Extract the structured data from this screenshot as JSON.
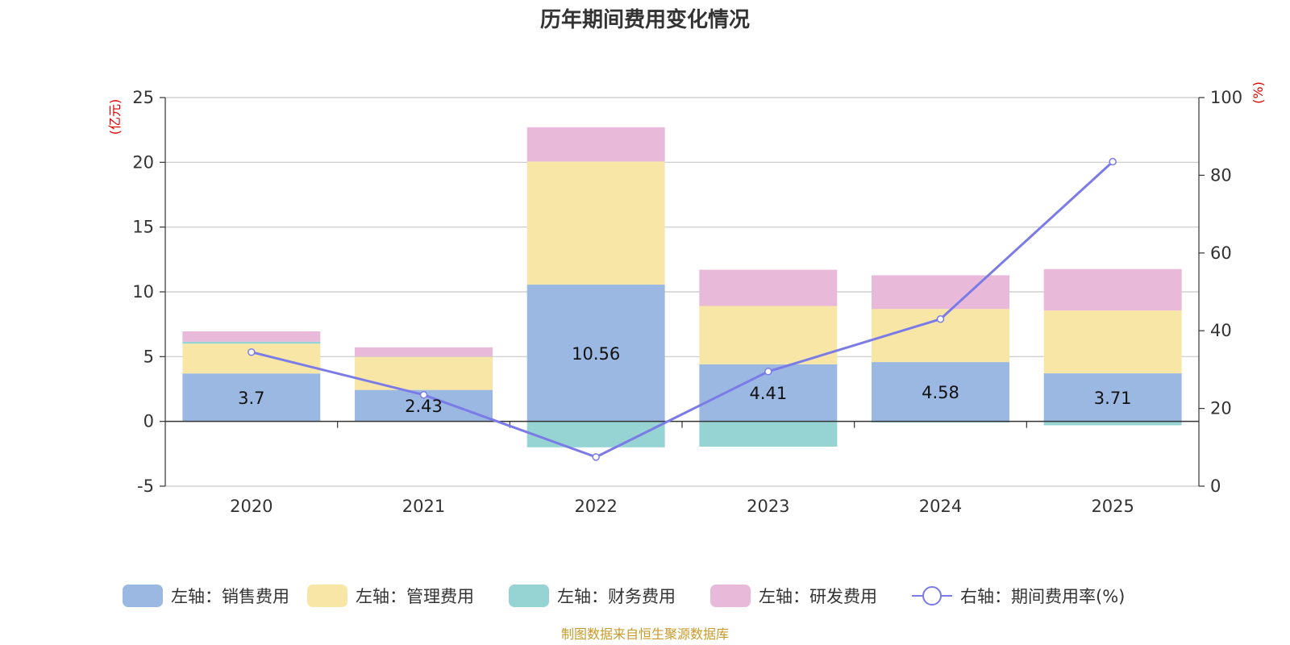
{
  "chart_data": {
    "type": "bar",
    "title": "历年期间费用变化情况",
    "categories": [
      "2020",
      "2021",
      "2022",
      "2023",
      "2024",
      "2025"
    ],
    "left_axis": {
      "unit": "(亿元)",
      "ylim": [
        -5,
        25
      ],
      "ticks": [
        -5,
        0,
        5,
        10,
        15,
        20,
        25
      ]
    },
    "right_axis": {
      "unit": "(%)",
      "ylim": [
        0,
        100
      ],
      "ticks": [
        0,
        20,
        40,
        60,
        80,
        100
      ]
    },
    "series": [
      {
        "name": "左轴：销售费用",
        "type": "bar",
        "axis": "left",
        "color": "#9bb8e2",
        "values": [
          3.7,
          2.43,
          10.56,
          4.41,
          4.58,
          3.71
        ],
        "labels": [
          "3.7",
          "2.43",
          "10.56",
          "4.41",
          "4.58",
          "3.71"
        ]
      },
      {
        "name": "左轴：管理费用",
        "type": "bar",
        "axis": "left",
        "color": "#f8e6a6",
        "values": [
          2.3,
          2.55,
          9.5,
          4.5,
          4.1,
          4.85
        ]
      },
      {
        "name": "左轴：财务费用",
        "type": "bar",
        "axis": "left",
        "color": "#96d4d4",
        "values": [
          0.15,
          0.02,
          -2.0,
          -1.95,
          -0.08,
          -0.3
        ]
      },
      {
        "name": "左轴：研发费用",
        "type": "bar",
        "axis": "left",
        "color": "#e8b9d9",
        "values": [
          0.8,
          0.72,
          2.65,
          2.8,
          2.6,
          3.2
        ]
      },
      {
        "name": "右轴：期间费用率(%)",
        "type": "line",
        "axis": "right",
        "color": "#7b7be8",
        "values": [
          34.5,
          23.5,
          7.5,
          29.5,
          43,
          83.5
        ]
      }
    ],
    "grid": true,
    "legend": "bottom"
  },
  "footer": {
    "source": "制图数据来自恒生聚源数据库"
  }
}
